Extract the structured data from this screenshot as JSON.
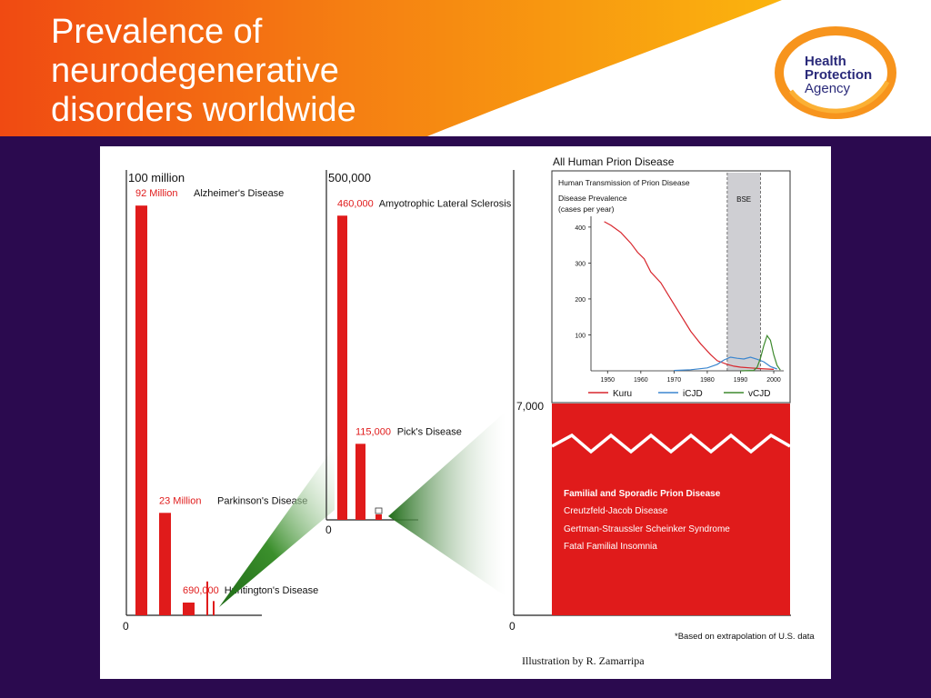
{
  "slide": {
    "title": "Prevalence of\nneurodegenerative\ndisorders worldwide",
    "logo_lines": [
      "Health",
      "Protection",
      "Agency"
    ],
    "colors": {
      "header_orange": "#f04a12",
      "header_amber": "#fb9f0a",
      "background": "#2b0a4f",
      "bar_red": "#e01b1b",
      "logo_navy": "#2a2a7a",
      "logo_ring": "#f7941d"
    }
  },
  "chart_data": [
    {
      "type": "bar",
      "top_label": "100 million",
      "zero_label": "0",
      "ylim": [
        0,
        100000000
      ],
      "categories": [
        "Alzheimer's Disease",
        "Parkinson's Disease",
        "Huntington's Disease"
      ],
      "values": [
        92000000,
        23000000,
        690000
      ],
      "value_labels": [
        "92 Million",
        "23 Million",
        "690,000"
      ],
      "extra_small_bars": [
        190000,
        80000
      ]
    },
    {
      "type": "bar",
      "top_label": "500,000",
      "zero_label": "0",
      "ylim": [
        0,
        500000
      ],
      "categories": [
        "Amyotrophic Lateral Sclerosis",
        "Pick's Disease"
      ],
      "values": [
        460000,
        115000
      ],
      "value_labels": [
        "460,000",
        "115,000"
      ],
      "extra_small_bars": [
        7000
      ]
    },
    {
      "type": "bar",
      "title": "All Human Prion Disease",
      "top_label": "7,000",
      "zero_label": "0",
      "block_label": "Familial and Sporadic Prion Disease",
      "block_items": [
        "Creutzfeld-Jacob Disease",
        "Gertman-Straussler Scheinker Syndrome",
        "Fatal Familial Insomnia"
      ],
      "footnote": "*Based on extrapolation of U.S. data"
    },
    {
      "type": "line",
      "title": "Human Transmission of Prion Disease",
      "ylabel": "Disease Prevalence\n(cases per year)",
      "xlim": [
        1945,
        2003
      ],
      "ylim": [
        0,
        430
      ],
      "xticks": [
        1950,
        1960,
        1970,
        1980,
        1990,
        2000
      ],
      "yticks": [
        100,
        200,
        300,
        400
      ],
      "shaded_band": {
        "label": "BSE",
        "x": [
          1986,
          1996
        ]
      },
      "series": [
        {
          "name": "Kuru",
          "color": "#d8262d",
          "points": [
            [
              1949,
              415
            ],
            [
              1951,
              405
            ],
            [
              1954,
              385
            ],
            [
              1957,
              355
            ],
            [
              1959,
              330
            ],
            [
              1961,
              312
            ],
            [
              1963,
              275
            ],
            [
              1966,
              245
            ],
            [
              1969,
              200
            ],
            [
              1972,
              155
            ],
            [
              1975,
              110
            ],
            [
              1978,
              75
            ],
            [
              1981,
              45
            ],
            [
              1983,
              28
            ],
            [
              1986,
              18
            ],
            [
              1988,
              13
            ],
            [
              1990,
              10
            ],
            [
              1993,
              8
            ],
            [
              1996,
              6
            ],
            [
              2000,
              4
            ]
          ]
        },
        {
          "name": "iCJD",
          "color": "#3b86cf",
          "points": [
            [
              1970,
              1
            ],
            [
              1975,
              3
            ],
            [
              1980,
              8
            ],
            [
              1983,
              18
            ],
            [
              1985,
              30
            ],
            [
              1987,
              38
            ],
            [
              1989,
              35
            ],
            [
              1991,
              33
            ],
            [
              1993,
              38
            ],
            [
              1995,
              32
            ],
            [
              1997,
              25
            ],
            [
              1999,
              12
            ],
            [
              2001,
              5
            ]
          ]
        },
        {
          "name": "vCJD",
          "color": "#3e8a2e",
          "points": [
            [
              1990,
              0
            ],
            [
              1994,
              1
            ],
            [
              1995,
              10
            ],
            [
              1996,
              35
            ],
            [
              1997,
              70
            ],
            [
              1998,
              98
            ],
            [
              1999,
              85
            ],
            [
              2000,
              45
            ],
            [
              2001,
              15
            ],
            [
              2002,
              2
            ]
          ]
        }
      ]
    }
  ],
  "credit": "Illustration by R. Zamarripa"
}
